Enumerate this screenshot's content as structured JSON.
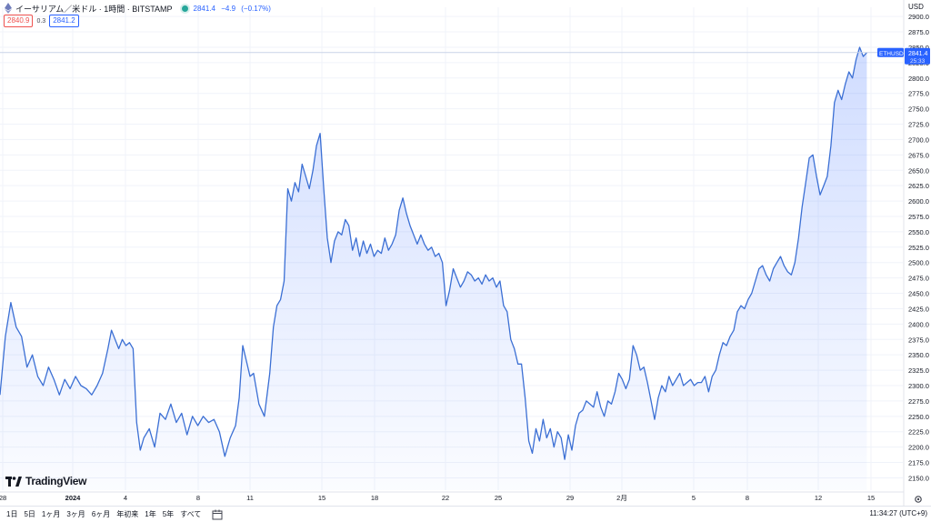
{
  "header": {
    "symbol_title": "イーサリアム／米ドル · 1時間 · BITSTAMP",
    "last_price": "2841.4",
    "change": "−4.9",
    "change_pct": "(−0.17%)"
  },
  "quotes": {
    "sell": "2840.9",
    "spread": "0.3",
    "buy": "2841.2"
  },
  "currency": "USD",
  "price_label": {
    "ticker": "ETHUSD",
    "price": "2841.4",
    "countdown": "25:33"
  },
  "brand": "TradingView",
  "toolbar": {
    "ranges": [
      "1日",
      "5日",
      "1ヶ月",
      "3ヶ月",
      "6ヶ月",
      "年初来",
      "1年",
      "5年",
      "すべて"
    ],
    "time": "11:34:27 (UTC+9)"
  },
  "colors": {
    "line": "#3b6fd4",
    "fill": "#2962ff",
    "accent": "#2962ff",
    "down": "#ef5350"
  },
  "chart_data": {
    "type": "area",
    "title": "",
    "xlabel": "",
    "ylabel": "",
    "x_tick_labels": [
      "28",
      "2024",
      "4",
      "8",
      "11",
      "15",
      "18",
      "22",
      "25",
      "29",
      "2月",
      "5",
      "8",
      "12",
      "15"
    ],
    "y_tick_labels": [
      "2150.0",
      "2175.0",
      "2200.0",
      "2225.0",
      "2250.0",
      "2275.0",
      "2300.0",
      "2325.0",
      "2350.0",
      "2375.0",
      "2400.0",
      "2425.0",
      "2450.0",
      "2475.0",
      "2500.0",
      "2525.0",
      "2550.0",
      "2575.0",
      "2600.0",
      "2625.0",
      "2650.0",
      "2675.0",
      "2700.0",
      "2725.0",
      "2750.0",
      "2775.0",
      "2800.0",
      "2825.0",
      "2850.0",
      "2875.0",
      "2900.0"
    ],
    "ylim": [
      2130,
      2915
    ],
    "x_range_days": [
      0,
      50.2
    ],
    "grid": true,
    "series": [
      {
        "points": [
          [
            0.0,
            2285
          ],
          [
            0.3,
            2380
          ],
          [
            0.6,
            2435
          ],
          [
            0.9,
            2395
          ],
          [
            1.2,
            2380
          ],
          [
            1.5,
            2330
          ],
          [
            1.8,
            2350
          ],
          [
            2.1,
            2315
          ],
          [
            2.4,
            2300
          ],
          [
            2.7,
            2330
          ],
          [
            3.0,
            2310
          ],
          [
            3.3,
            2285
          ],
          [
            3.6,
            2310
          ],
          [
            3.9,
            2295
          ],
          [
            4.2,
            2315
          ],
          [
            4.5,
            2300
          ],
          [
            4.8,
            2295
          ],
          [
            5.1,
            2285
          ],
          [
            5.4,
            2300
          ],
          [
            5.7,
            2320
          ],
          [
            6.0,
            2360
          ],
          [
            6.2,
            2390
          ],
          [
            6.4,
            2375
          ],
          [
            6.6,
            2360
          ],
          [
            6.8,
            2375
          ],
          [
            7.0,
            2365
          ],
          [
            7.2,
            2370
          ],
          [
            7.4,
            2360
          ],
          [
            7.6,
            2240
          ],
          [
            7.8,
            2195
          ],
          [
            8.0,
            2215
          ],
          [
            8.3,
            2230
          ],
          [
            8.6,
            2200
          ],
          [
            8.9,
            2255
          ],
          [
            9.2,
            2245
          ],
          [
            9.5,
            2270
          ],
          [
            9.8,
            2240
          ],
          [
            10.1,
            2255
          ],
          [
            10.4,
            2220
          ],
          [
            10.7,
            2250
          ],
          [
            11.0,
            2235
          ],
          [
            11.3,
            2250
          ],
          [
            11.6,
            2240
          ],
          [
            11.9,
            2245
          ],
          [
            12.2,
            2225
          ],
          [
            12.5,
            2185
          ],
          [
            12.8,
            2215
          ],
          [
            13.1,
            2235
          ],
          [
            13.3,
            2280
          ],
          [
            13.5,
            2365
          ],
          [
            13.7,
            2340
          ],
          [
            13.9,
            2315
          ],
          [
            14.1,
            2320
          ],
          [
            14.4,
            2270
          ],
          [
            14.7,
            2250
          ],
          [
            15.0,
            2320
          ],
          [
            15.2,
            2395
          ],
          [
            15.4,
            2430
          ],
          [
            15.6,
            2440
          ],
          [
            15.8,
            2470
          ],
          [
            16.0,
            2620
          ],
          [
            16.2,
            2600
          ],
          [
            16.4,
            2630
          ],
          [
            16.6,
            2615
          ],
          [
            16.8,
            2660
          ],
          [
            17.0,
            2640
          ],
          [
            17.2,
            2620
          ],
          [
            17.4,
            2650
          ],
          [
            17.6,
            2690
          ],
          [
            17.8,
            2710
          ],
          [
            18.0,
            2620
          ],
          [
            18.2,
            2540
          ],
          [
            18.4,
            2500
          ],
          [
            18.6,
            2535
          ],
          [
            18.8,
            2550
          ],
          [
            19.0,
            2545
          ],
          [
            19.2,
            2570
          ],
          [
            19.4,
            2560
          ],
          [
            19.6,
            2520
          ],
          [
            19.8,
            2540
          ],
          [
            20.0,
            2510
          ],
          [
            20.2,
            2535
          ],
          [
            20.4,
            2515
          ],
          [
            20.6,
            2530
          ],
          [
            20.8,
            2510
          ],
          [
            21.0,
            2520
          ],
          [
            21.2,
            2515
          ],
          [
            21.4,
            2540
          ],
          [
            21.6,
            2520
          ],
          [
            21.8,
            2530
          ],
          [
            22.0,
            2545
          ],
          [
            22.2,
            2585
          ],
          [
            22.4,
            2605
          ],
          [
            22.6,
            2580
          ],
          [
            22.8,
            2560
          ],
          [
            23.0,
            2545
          ],
          [
            23.2,
            2530
          ],
          [
            23.4,
            2545
          ],
          [
            23.6,
            2530
          ],
          [
            23.8,
            2520
          ],
          [
            24.0,
            2525
          ],
          [
            24.2,
            2510
          ],
          [
            24.4,
            2515
          ],
          [
            24.6,
            2500
          ],
          [
            24.8,
            2430
          ],
          [
            25.0,
            2455
          ],
          [
            25.2,
            2490
          ],
          [
            25.4,
            2475
          ],
          [
            25.6,
            2460
          ],
          [
            25.8,
            2470
          ],
          [
            26.0,
            2485
          ],
          [
            26.2,
            2480
          ],
          [
            26.4,
            2470
          ],
          [
            26.6,
            2475
          ],
          [
            26.8,
            2465
          ],
          [
            27.0,
            2480
          ],
          [
            27.2,
            2470
          ],
          [
            27.4,
            2475
          ],
          [
            27.6,
            2460
          ],
          [
            27.8,
            2470
          ],
          [
            28.0,
            2430
          ],
          [
            28.2,
            2420
          ],
          [
            28.4,
            2375
          ],
          [
            28.6,
            2360
          ],
          [
            28.8,
            2335
          ],
          [
            29.0,
            2335
          ],
          [
            29.2,
            2280
          ],
          [
            29.4,
            2210
          ],
          [
            29.6,
            2190
          ],
          [
            29.8,
            2230
          ],
          [
            30.0,
            2210
          ],
          [
            30.2,
            2245
          ],
          [
            30.4,
            2215
          ],
          [
            30.6,
            2230
          ],
          [
            30.8,
            2200
          ],
          [
            31.0,
            2225
          ],
          [
            31.2,
            2215
          ],
          [
            31.4,
            2180
          ],
          [
            31.6,
            2220
          ],
          [
            31.8,
            2195
          ],
          [
            32.0,
            2235
          ],
          [
            32.2,
            2255
          ],
          [
            32.4,
            2260
          ],
          [
            32.6,
            2275
          ],
          [
            32.8,
            2270
          ],
          [
            33.0,
            2265
          ],
          [
            33.2,
            2290
          ],
          [
            33.4,
            2265
          ],
          [
            33.6,
            2250
          ],
          [
            33.8,
            2275
          ],
          [
            34.0,
            2270
          ],
          [
            34.2,
            2290
          ],
          [
            34.4,
            2320
          ],
          [
            34.6,
            2310
          ],
          [
            34.8,
            2295
          ],
          [
            35.0,
            2310
          ],
          [
            35.2,
            2365
          ],
          [
            35.4,
            2350
          ],
          [
            35.6,
            2325
          ],
          [
            35.8,
            2330
          ],
          [
            36.0,
            2305
          ],
          [
            36.2,
            2275
          ],
          [
            36.4,
            2245
          ],
          [
            36.6,
            2280
          ],
          [
            36.8,
            2300
          ],
          [
            37.0,
            2290
          ],
          [
            37.2,
            2315
          ],
          [
            37.4,
            2300
          ],
          [
            37.6,
            2310
          ],
          [
            37.8,
            2320
          ],
          [
            38.0,
            2300
          ],
          [
            38.2,
            2305
          ],
          [
            38.4,
            2310
          ],
          [
            38.6,
            2300
          ],
          [
            38.8,
            2305
          ],
          [
            39.0,
            2305
          ],
          [
            39.2,
            2315
          ],
          [
            39.4,
            2290
          ],
          [
            39.6,
            2315
          ],
          [
            39.8,
            2325
          ],
          [
            40.0,
            2350
          ],
          [
            40.2,
            2370
          ],
          [
            40.4,
            2365
          ],
          [
            40.6,
            2380
          ],
          [
            40.8,
            2390
          ],
          [
            41.0,
            2420
          ],
          [
            41.2,
            2430
          ],
          [
            41.4,
            2425
          ],
          [
            41.6,
            2440
          ],
          [
            41.8,
            2450
          ],
          [
            42.0,
            2470
          ],
          [
            42.2,
            2490
          ],
          [
            42.4,
            2495
          ],
          [
            42.6,
            2480
          ],
          [
            42.8,
            2470
          ],
          [
            43.0,
            2490
          ],
          [
            43.2,
            2500
          ],
          [
            43.4,
            2510
          ],
          [
            43.6,
            2495
          ],
          [
            43.8,
            2485
          ],
          [
            44.0,
            2480
          ],
          [
            44.2,
            2500
          ],
          [
            44.4,
            2540
          ],
          [
            44.6,
            2590
          ],
          [
            44.8,
            2630
          ],
          [
            45.0,
            2670
          ],
          [
            45.2,
            2675
          ],
          [
            45.4,
            2640
          ],
          [
            45.6,
            2610
          ],
          [
            45.8,
            2625
          ],
          [
            46.0,
            2640
          ],
          [
            46.2,
            2690
          ],
          [
            46.4,
            2760
          ],
          [
            46.6,
            2780
          ],
          [
            46.8,
            2765
          ],
          [
            47.0,
            2790
          ],
          [
            47.2,
            2810
          ],
          [
            47.4,
            2800
          ],
          [
            47.6,
            2830
          ],
          [
            47.8,
            2850
          ],
          [
            48.0,
            2835
          ],
          [
            48.2,
            2841.4
          ]
        ]
      }
    ]
  }
}
